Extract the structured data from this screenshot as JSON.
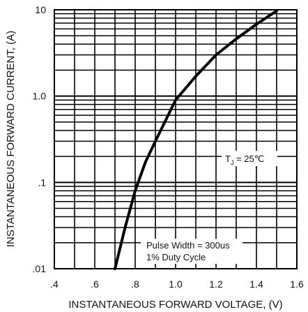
{
  "chart_data": {
    "type": "line",
    "xlabel": "INSTANTANEOUS FORWARD VOLTAGE, (V)",
    "ylabel": "INSTANTANEOUS FORWARD CURRENT, (A)",
    "xlim": [
      0.4,
      1.6
    ],
    "ylim": [
      0.01,
      10
    ],
    "yscale": "log",
    "grid": true,
    "x_ticks": [
      {
        "value": 0.4,
        "label": ".4"
      },
      {
        "value": 0.6,
        "label": ".6"
      },
      {
        "value": 0.8,
        "label": ".8"
      },
      {
        "value": 1.0,
        "label": "1.0"
      },
      {
        "value": 1.2,
        "label": "1.2"
      },
      {
        "value": 1.4,
        "label": "1.4"
      },
      {
        "value": 1.6,
        "label": "1.6"
      }
    ],
    "y_ticks": [
      {
        "value": 0.01,
        "label": ".01"
      },
      {
        "value": 0.1,
        "label": ".1"
      },
      {
        "value": 1.0,
        "label": "1.0"
      },
      {
        "value": 10,
        "label": "10"
      }
    ],
    "series": [
      {
        "x": [
          0.7,
          0.75,
          0.8,
          0.85,
          0.9,
          1.0,
          1.1,
          1.2,
          1.3,
          1.4,
          1.5
        ],
        "y": [
          0.01,
          0.03,
          0.08,
          0.17,
          0.3,
          0.9,
          1.7,
          3.0,
          4.6,
          6.8,
          9.7
        ]
      }
    ],
    "annotations": {
      "temperature": {
        "prefix": "T",
        "sub": "J",
        "suffix": " = 25℃"
      },
      "pulse_line1": "Pulse Width = 300us",
      "pulse_line2": "1% Duty Cycle"
    }
  }
}
